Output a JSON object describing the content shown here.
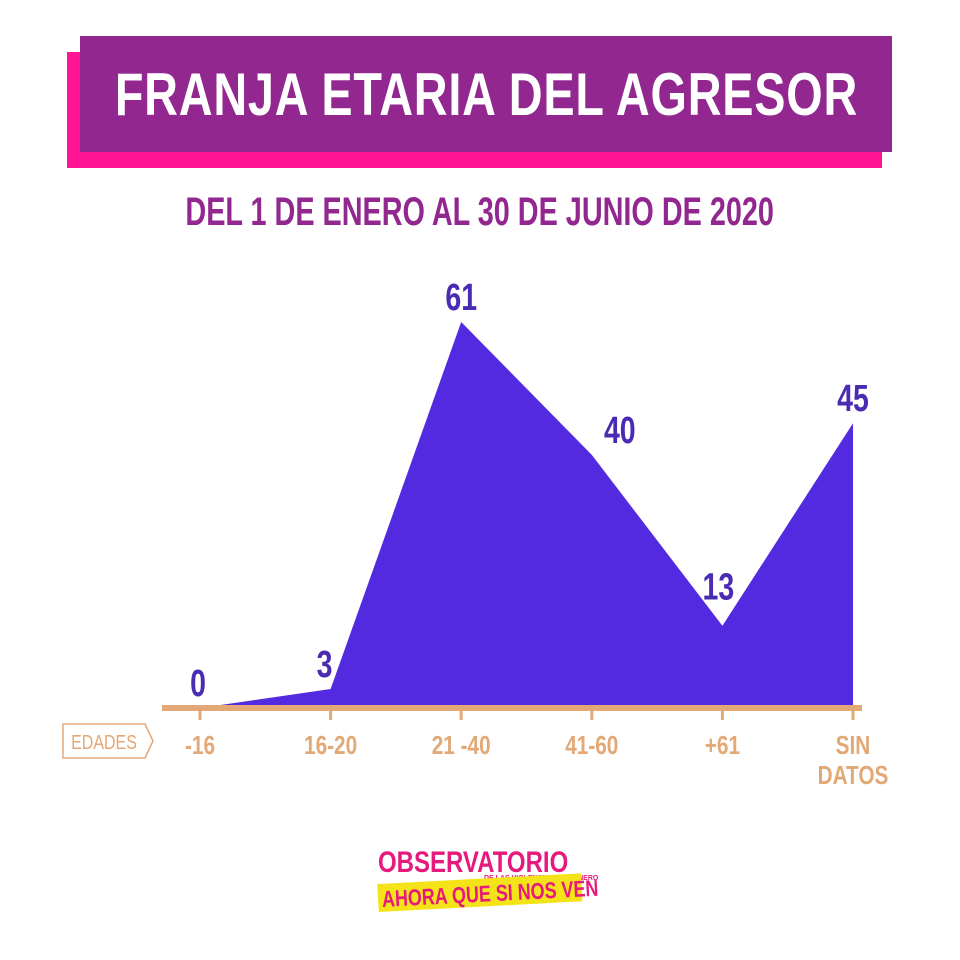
{
  "title": "FRANJA ETARIA DEL AGRESOR",
  "subtitle": "DEL 1 DE ENERO AL 30 DE JUNIO DE 2020",
  "colors": {
    "title_bg": "#91278f",
    "title_shadow": "#ff1493",
    "area_fill": "#532ae0",
    "label_color": "#4b2bb4",
    "axis_color": "#e2a876",
    "logo_pink": "#e6197d",
    "logo_yellow": "#f5e31a"
  },
  "chart_data": {
    "type": "area",
    "xlabel": "EDADES",
    "categories": [
      "-16",
      "16-20",
      "21 -40",
      "41-60",
      "+61",
      "SIN DATOS"
    ],
    "series": [
      {
        "values": [
          0,
          3,
          61,
          40,
          13,
          45
        ]
      }
    ],
    "ylim": [
      0,
      61
    ],
    "grid": false,
    "legend": "none"
  },
  "logo": {
    "top": "OBSERVATORIO",
    "small": "DE LAS VIOLENCIAS DE GÉNERO",
    "bottom": "AHORA QUE SI NOS VEN"
  }
}
